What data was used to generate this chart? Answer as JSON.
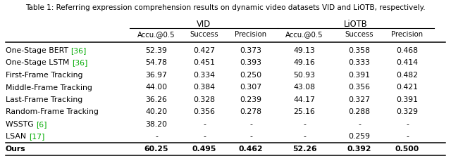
{
  "title": "Table 1: Referring expression comprehension results on dynamic video datasets VID and LiOTB, respectively.",
  "col_headers": [
    "Accu.@0.5",
    "Success",
    "Precision",
    "Accu.@0.5",
    "Success",
    "Precision"
  ],
  "row_label_parts": [
    [
      "One-Stage BERT ",
      "[36]"
    ],
    [
      "One-Stage LSTM ",
      "[36]"
    ],
    [
      "First-Frame Tracking"
    ],
    [
      "Middle-Frame Tracking"
    ],
    [
      "Last-Frame Tracking"
    ],
    [
      "Random-Frame Tracking"
    ],
    [
      "WSSTG ",
      "[6]"
    ],
    [
      "LSAN ",
      "[17]"
    ],
    [
      "Ours"
    ]
  ],
  "row_label_colors": [
    [
      "#000000",
      "#00aa00"
    ],
    [
      "#000000",
      "#00aa00"
    ],
    [
      "#000000"
    ],
    [
      "#000000"
    ],
    [
      "#000000"
    ],
    [
      "#000000"
    ],
    [
      "#000000",
      "#00aa00"
    ],
    [
      "#000000",
      "#00aa00"
    ],
    [
      "#000000"
    ]
  ],
  "data": [
    [
      "52.39",
      "0.427",
      "0.373",
      "49.13",
      "0.358",
      "0.468"
    ],
    [
      "54.78",
      "0.451",
      "0.393",
      "49.16",
      "0.333",
      "0.414"
    ],
    [
      "36.97",
      "0.334",
      "0.250",
      "50.93",
      "0.391",
      "0.482"
    ],
    [
      "44.00",
      "0.384",
      "0.307",
      "43.08",
      "0.356",
      "0.421"
    ],
    [
      "36.26",
      "0.328",
      "0.239",
      "44.17",
      "0.327",
      "0.391"
    ],
    [
      "40.20",
      "0.356",
      "0.278",
      "25.16",
      "0.288",
      "0.329"
    ],
    [
      "38.20",
      "-",
      "-",
      "-",
      "-",
      "-"
    ],
    [
      "-",
      "-",
      "-",
      "-",
      "0.259",
      "-"
    ],
    [
      "60.25",
      "0.495",
      "0.462",
      "52.26",
      "0.392",
      "0.500"
    ]
  ],
  "bold_row": 8,
  "background_color": "#ffffff",
  "font_size": 7.8,
  "title_font_size": 7.5,
  "font_family": "DejaVu Sans"
}
